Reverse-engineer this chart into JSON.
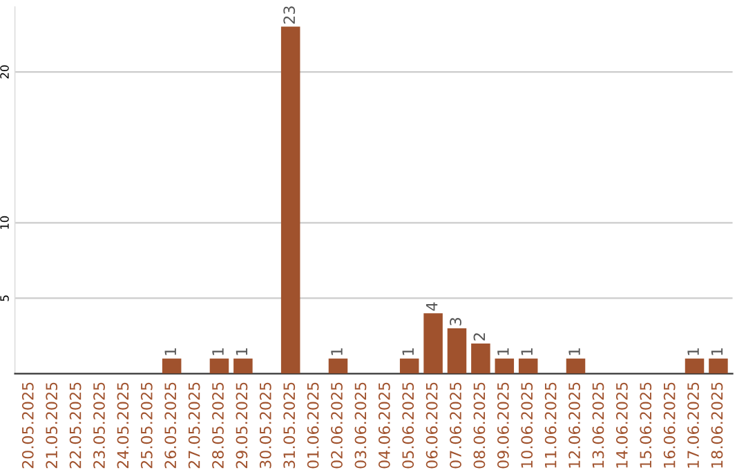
{
  "chart_data": {
    "type": "bar",
    "categories": [
      "20.05.2025",
      "21.05.2025",
      "22.05.2025",
      "23.05.2025",
      "24.05.2025",
      "25.05.2025",
      "26.05.2025",
      "27.05.2025",
      "28.05.2025",
      "29.05.2025",
      "30.05.2025",
      "31.05.2025",
      "01.06.2025",
      "02.06.2025",
      "03.06.2025",
      "04.06.2025",
      "05.06.2025",
      "06.06.2025",
      "07.06.2025",
      "08.06.2025",
      "09.06.2025",
      "10.06.2025",
      "11.06.2025",
      "12.06.2025",
      "13.06.2025",
      "14.06.2025",
      "15.06.2025",
      "16.06.2025",
      "17.06.2025",
      "18.06.2025"
    ],
    "values": [
      0,
      0,
      0,
      0,
      0,
      0,
      1,
      0,
      1,
      1,
      0,
      23,
      0,
      1,
      0,
      0,
      1,
      4,
      3,
      2,
      1,
      1,
      0,
      1,
      0,
      0,
      0,
      0,
      1,
      1
    ],
    "value_labels": [
      null,
      null,
      null,
      null,
      null,
      null,
      "1",
      null,
      "1",
      "1",
      null,
      "23",
      null,
      "1",
      null,
      null,
      "1",
      "4",
      "3",
      "2",
      "1",
      "1",
      null,
      "1",
      null,
      null,
      null,
      null,
      "1",
      "1"
    ],
    "color": "#a0522d",
    "ylim": [
      0,
      24.3
    ],
    "yticks": [
      5,
      10,
      20
    ],
    "grid": "y"
  }
}
